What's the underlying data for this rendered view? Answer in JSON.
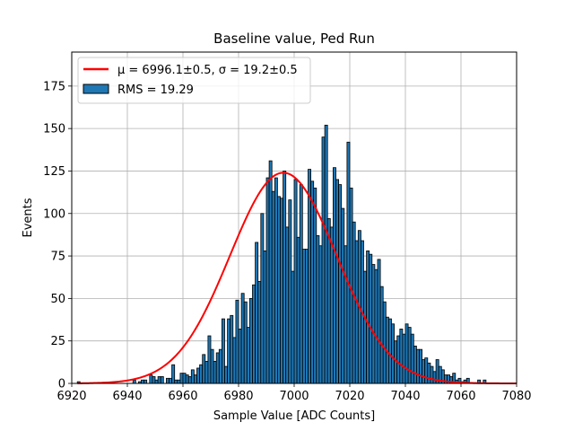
{
  "chart_data": {
    "type": "bar",
    "title": "Baseline value, Ped Run",
    "xlabel": "Sample Value [ADC Counts]",
    "ylabel": "Events",
    "xlim": [
      6920,
      7080
    ],
    "ylim": [
      0,
      195
    ],
    "xticks": [
      6920,
      6940,
      6960,
      6980,
      7000,
      7020,
      7040,
      7060,
      7080
    ],
    "yticks": [
      0,
      25,
      50,
      75,
      100,
      125,
      150,
      175
    ],
    "grid": true,
    "legend_position": "top-left",
    "bin_width": 1,
    "bin_start": 6922,
    "values": [
      1,
      0,
      0,
      0,
      0,
      0,
      0,
      0,
      0,
      0,
      0,
      0,
      0,
      0,
      0,
      0,
      0,
      0,
      0,
      0,
      2,
      0,
      1,
      2,
      2,
      0,
      5,
      4,
      2,
      4,
      4,
      0,
      3,
      3,
      11,
      2,
      2,
      6,
      6,
      5,
      4,
      8,
      5,
      9,
      11,
      17,
      13,
      28,
      20,
      13,
      18,
      20,
      38,
      10,
      38,
      40,
      27,
      49,
      32,
      53,
      48,
      33,
      50,
      58,
      83,
      60,
      100,
      78,
      121,
      131,
      113,
      121,
      110,
      109,
      125,
      92,
      108,
      66,
      120,
      86,
      117,
      79,
      79,
      126,
      119,
      115,
      87,
      81,
      145,
      152,
      97,
      92,
      127,
      120,
      117,
      103,
      81,
      142,
      115,
      95,
      84,
      90,
      84,
      66,
      78,
      76,
      70,
      67,
      73,
      57,
      48,
      39,
      38,
      35,
      25,
      28,
      32,
      29,
      35,
      33,
      29,
      22,
      20,
      20,
      14,
      15,
      12,
      10,
      7,
      14,
      10,
      8,
      5,
      5,
      4,
      6,
      2,
      3,
      1,
      2,
      3,
      0,
      0,
      0,
      2,
      0,
      2,
      0
    ],
    "series": [
      {
        "name": "histogram",
        "legend": "RMS = 19.29",
        "color": "#1f77b4",
        "edgecolor": "#000000"
      },
      {
        "name": "gaussian fit",
        "legend": "μ = 6996.1±0.5, σ = 19.2±0.5",
        "color": "#ff0000",
        "mu": 6996.1,
        "sigma": 19.2,
        "amplitude": 124,
        "x_range": [
          6922,
          7080
        ]
      }
    ]
  },
  "legend": {
    "fit_label": "μ = 6996.1±0.5, σ = 19.2±0.5",
    "hist_label": "RMS = 19.29"
  }
}
